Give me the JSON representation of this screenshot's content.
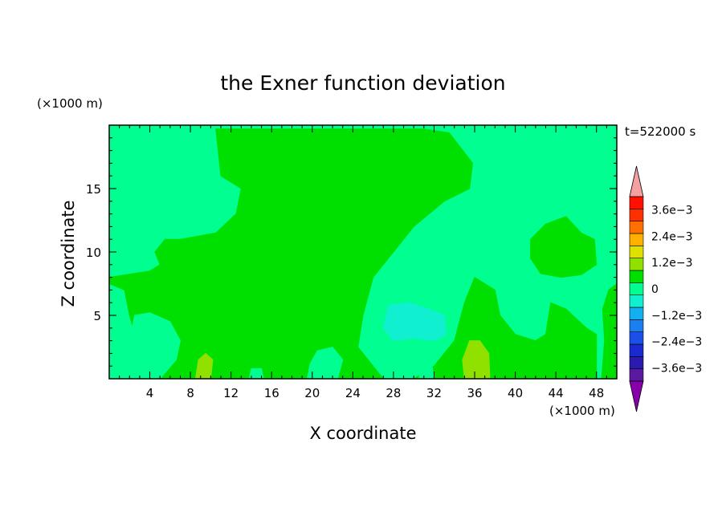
{
  "chart_data": {
    "type": "heatmap",
    "title": "the Exner function deviation",
    "xlabel": "X coordinate",
    "ylabel": "Z coordinate",
    "x_unit": "(×1000 m)",
    "y_unit": "(×1000 m)",
    "time_label": "t=522000 s",
    "xlim": [
      0,
      50
    ],
    "ylim": [
      0,
      20
    ],
    "x_ticks": [
      4,
      8,
      12,
      16,
      20,
      24,
      28,
      32,
      36,
      40,
      44,
      48
    ],
    "y_ticks": [
      5,
      10,
      15
    ],
    "colorbar": {
      "levels": [
        -0.0042,
        -0.0036,
        -0.003,
        -0.0024,
        -0.0018,
        -0.0012,
        -0.0006,
        0,
        0.0006,
        0.0012,
        0.0018,
        0.0024,
        0.003,
        0.0036,
        0.0042
      ],
      "colors": [
        "#5a1aa0",
        "#2a1ab0",
        "#1a2ad0",
        "#1a50e8",
        "#1a80f0",
        "#12b0f0",
        "#10f0d0",
        "#00ff90",
        "#00e000",
        "#90e000",
        "#e0e000",
        "#ffb000",
        "#ff7000",
        "#ff3000",
        "#ff1000"
      ],
      "under_color": "#8800aa",
      "over_color": "#f4a0a0",
      "tick_values": [
        0.0036,
        0.0024,
        0.0012,
        0,
        -0.0012,
        -0.0024,
        -0.0036
      ],
      "tick_labels": [
        "3.6e−3",
        "2.4e−3",
        "1.2e−3",
        "0",
        "−1.2e−3",
        "−2.4e−3",
        "−3.6e−3"
      ]
    },
    "background_level": {
      "range": [
        -0.0006,
        0
      ],
      "color": "#00ff90"
    },
    "regions": [
      {
        "level": "0 to 6e-4",
        "color": "#00e000",
        "outline": [
          [
            0,
            0
          ],
          [
            3,
            0
          ],
          [
            3,
            2
          ],
          [
            2,
            5
          ],
          [
            1.5,
            7
          ],
          [
            0,
            7.5
          ],
          [
            0,
            8
          ],
          [
            4,
            8.5
          ],
          [
            5,
            9
          ],
          [
            4.5,
            10
          ],
          [
            5.5,
            11
          ],
          [
            7,
            11
          ],
          [
            10.5,
            11.5
          ],
          [
            12.5,
            13
          ],
          [
            13,
            15
          ],
          [
            11,
            16
          ],
          [
            10.5,
            19.7
          ],
          [
            31,
            19.7
          ],
          [
            33.5,
            19.4
          ],
          [
            35.8,
            17
          ],
          [
            35.5,
            15
          ],
          [
            33,
            14
          ],
          [
            30,
            12
          ],
          [
            28,
            10
          ],
          [
            26,
            8
          ],
          [
            25,
            5
          ],
          [
            24.5,
            2.5
          ],
          [
            26,
            1
          ],
          [
            27,
            0
          ]
        ]
      },
      {
        "level": "0 to 6e-4",
        "color": "#00e000",
        "outline": [
          [
            30,
            0
          ],
          [
            32,
            1
          ],
          [
            34,
            3
          ],
          [
            35,
            6
          ],
          [
            36,
            8
          ],
          [
            38,
            7
          ],
          [
            38.5,
            5
          ],
          [
            40,
            3.5
          ],
          [
            42,
            3
          ],
          [
            43,
            3.5
          ],
          [
            43.5,
            6
          ],
          [
            45,
            5.5
          ],
          [
            47,
            4
          ],
          [
            48,
            3.5
          ],
          [
            48,
            0
          ]
        ]
      },
      {
        "level": "0 to 6e-4",
        "color": "#00e000",
        "outline": [
          [
            41.5,
            11
          ],
          [
            43,
            12.2
          ],
          [
            45,
            12.8
          ],
          [
            46.5,
            11.5
          ],
          [
            47.8,
            11
          ],
          [
            48,
            9
          ],
          [
            46.5,
            8.2
          ],
          [
            44.5,
            8
          ],
          [
            42.5,
            8.3
          ],
          [
            41.5,
            9.5
          ]
        ]
      },
      {
        "level": "0 to 6e-4",
        "color": "#00e000",
        "outline": [
          [
            48.5,
            0
          ],
          [
            50,
            0
          ],
          [
            50,
            7.5
          ],
          [
            49.2,
            7
          ],
          [
            48.6,
            5.5
          ],
          [
            48.8,
            3
          ]
        ]
      },
      {
        "level": "-6e-4 to 0",
        "color": "#00ff90",
        "outline": [
          [
            2,
            3
          ],
          [
            2.5,
            5
          ],
          [
            4,
            5.2
          ],
          [
            6,
            4.5
          ],
          [
            7,
            3
          ],
          [
            6.6,
            1.5
          ],
          [
            5,
            0
          ],
          [
            3,
            0
          ],
          [
            2,
            1.5
          ]
        ]
      },
      {
        "level": "-6e-4 to 0",
        "color": "#00ff90",
        "outline": [
          [
            19.5,
            0
          ],
          [
            22.5,
            0
          ],
          [
            23,
            1.5
          ],
          [
            22,
            2.5
          ],
          [
            20.5,
            2.2
          ],
          [
            19.8,
            1.2
          ]
        ]
      },
      {
        "level": "-6e-4 to 0",
        "color": "#00ff90",
        "outline": [
          [
            13.8,
            0
          ],
          [
            15.2,
            0
          ],
          [
            15,
            0.8
          ],
          [
            14,
            0.8
          ]
        ]
      },
      {
        "level": "-6e-4 to 0",
        "color": "#00ff90",
        "outline": [
          [
            30.5,
            0
          ],
          [
            32,
            0
          ],
          [
            31.7,
            1.5
          ],
          [
            30.8,
            1.5
          ]
        ]
      },
      {
        "level": "-1.2e-3 to -6e-4",
        "color": "#10f0d0",
        "outline": [
          [
            27,
            4
          ],
          [
            27.5,
            5.8
          ],
          [
            29.5,
            6
          ],
          [
            31.5,
            5.5
          ],
          [
            33,
            5
          ],
          [
            33.2,
            3.5
          ],
          [
            32,
            3
          ],
          [
            30,
            3.2
          ],
          [
            28,
            3
          ]
        ]
      },
      {
        "level": "6e-4 to 1.2e-3",
        "color": "#90e000",
        "outline": [
          [
            8.5,
            0
          ],
          [
            10,
            0
          ],
          [
            10.2,
            1.5
          ],
          [
            9.5,
            2
          ],
          [
            8.8,
            1.5
          ]
        ]
      },
      {
        "level": "6e-4 to 1.2e-3",
        "color": "#90e000",
        "outline": [
          [
            35,
            0
          ],
          [
            37.5,
            0
          ],
          [
            37.4,
            2
          ],
          [
            36.5,
            3
          ],
          [
            35.5,
            3
          ],
          [
            34.8,
            1.5
          ]
        ]
      }
    ]
  }
}
